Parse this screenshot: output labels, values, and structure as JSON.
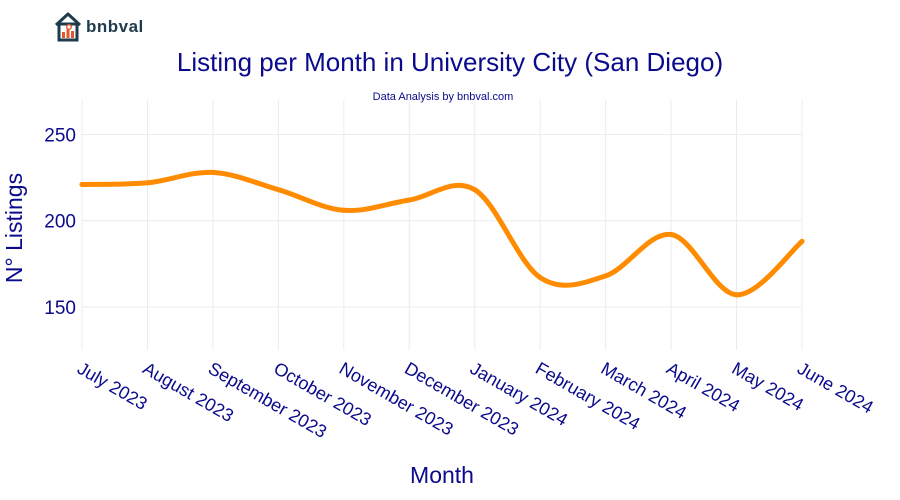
{
  "brand": {
    "name": "bnbval"
  },
  "colors": {
    "line": "#ff8c00",
    "text": "#0a0a8c",
    "grid": "#ececec"
  },
  "chart_data": {
    "type": "line",
    "title": "Listing per Month in University City (San Diego)",
    "subtitle": "Data Analysis by bnbval.com",
    "xlabel": "Month",
    "ylabel": "N° Listings",
    "categories": [
      "July 2023",
      "August 2023",
      "September 2023",
      "October 2023",
      "November 2023",
      "December 2023",
      "January 2024",
      "February 2024",
      "March 2024",
      "April 2024",
      "May 2024",
      "June 2024"
    ],
    "series": [
      {
        "name": "Listings",
        "values": [
          221,
          222,
          228,
          218,
          206,
          212,
          218,
          167,
          168,
          192,
          157,
          188
        ]
      }
    ],
    "ylim": [
      125,
      270
    ],
    "yticks": [
      150,
      200,
      250
    ],
    "grid": true
  }
}
